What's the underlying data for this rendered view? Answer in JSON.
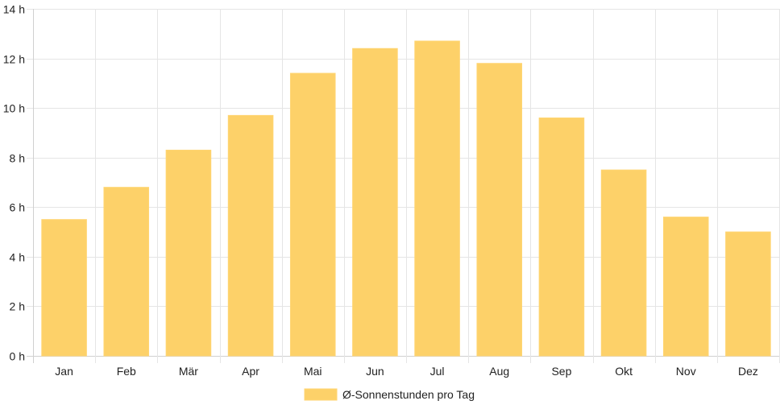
{
  "colors": {
    "bar_fill": "#fdd169",
    "bar_border": "#ffd572",
    "grid": "#e5e5e5",
    "text": "#222222"
  },
  "chart_data": {
    "type": "bar",
    "title": "",
    "xlabel": "",
    "ylabel": "",
    "categories": [
      "Jan",
      "Feb",
      "Mär",
      "Apr",
      "Mai",
      "Jun",
      "Jul",
      "Aug",
      "Sep",
      "Okt",
      "Nov",
      "Dez"
    ],
    "series": [
      {
        "name": "Ø-Sonnenstunden pro Tag",
        "values": [
          5.5,
          6.8,
          8.3,
          9.7,
          11.4,
          12.4,
          12.7,
          11.8,
          9.6,
          7.5,
          5.6,
          5.0
        ]
      }
    ],
    "ylim": [
      0,
      14
    ],
    "yticks": [
      {
        "value": 0,
        "label": "0 h"
      },
      {
        "value": 2,
        "label": "2 h"
      },
      {
        "value": 4,
        "label": "4 h"
      },
      {
        "value": 6,
        "label": "6 h"
      },
      {
        "value": 8,
        "label": "8 h"
      },
      {
        "value": 10,
        "label": "10 h"
      },
      {
        "value": 12,
        "label": "12 h"
      },
      {
        "value": 14,
        "label": "14 h"
      }
    ],
    "grid": true,
    "legend_position": "bottom"
  }
}
